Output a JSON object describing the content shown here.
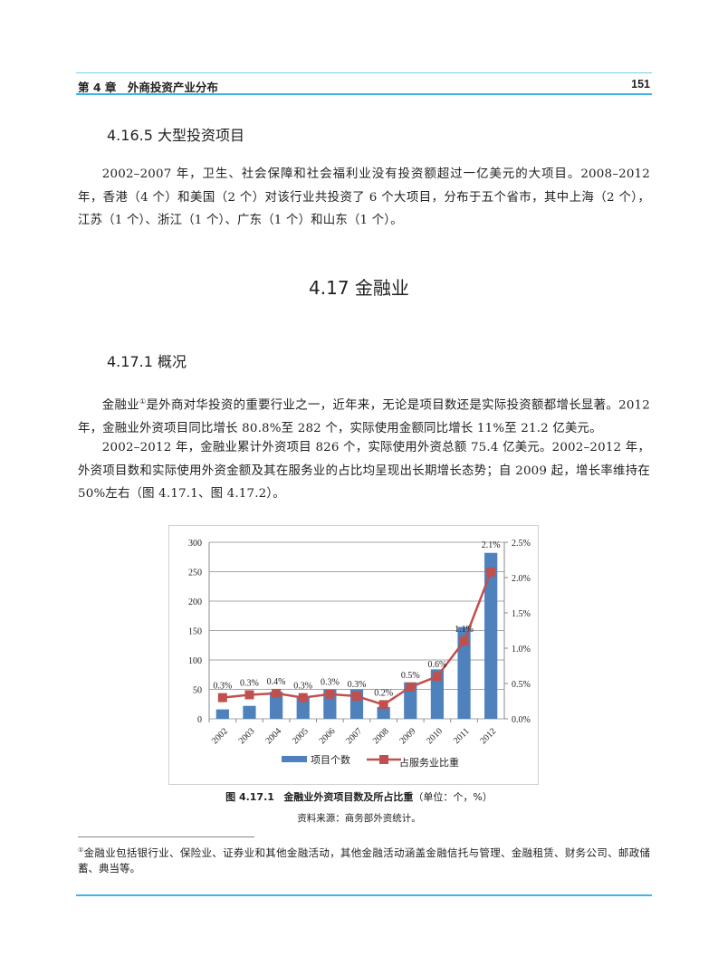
{
  "header": {
    "chapter": "第 4 章　外商投资产业分布",
    "page_number": "151"
  },
  "section_4165": {
    "heading": "4.16.5  大型投资项目",
    "paragraph": "2002–2007 年，卫生、社会保障和社会福利业没有投资额超过一亿美元的大项目。2008–2012 年，香港（4 个）和美国（2 个）对该行业共投资了 6 个大项目，分布于五个省市，其中上海（2 个），江苏（1 个）、浙江（1 个）、广东（1 个）和山东（1 个）。"
  },
  "section_417": {
    "heading": "4.17  金融业"
  },
  "section_4171": {
    "heading": "4.17.1  概况",
    "p1_lead": "金融业",
    "p1_mark": "①",
    "p1_rest": "是外商对华投资的重要行业之一，近年来，无论是项目数还是实际投资额都增长显著。2012 年，金融业外资项目同比增长 80.8%至 282 个，实际使用金额同比增长 11%至 21.2 亿美元。",
    "p2": "2002–2012 年，金融业累计外资项目 826 个，实际使用外资总额 75.4 亿美元。2002–2012 年，外资项目数和实际使用外资金额及其在服务业的占比均呈现出长期增长态势；自 2009 起，增长率维持在 50%左右（图 4.17.1、图 4.17.2）。"
  },
  "chart_data": {
    "type": "bar+line",
    "categories": [
      "2002",
      "2003",
      "2004",
      "2005",
      "2006",
      "2007",
      "2008",
      "2009",
      "2010",
      "2011",
      "2012"
    ],
    "series": [
      {
        "name": "项目个数",
        "type": "bar",
        "axis": "left",
        "color": "#4f81bd",
        "values": [
          16,
          22,
          46,
          38,
          50,
          50,
          20,
          62,
          84,
          156,
          282
        ]
      },
      {
        "name": "占服务业比重",
        "type": "line",
        "axis": "right",
        "color": "#c0504d",
        "values": [
          0.3,
          0.34,
          0.36,
          0.3,
          0.35,
          0.32,
          0.2,
          0.45,
          0.6,
          1.1,
          2.08
        ],
        "data_labels": [
          "0.3%",
          "0.3%",
          "0.4%",
          "0.3%",
          "0.3%",
          "0.3%",
          "0.2%",
          "0.5%",
          "0.6%",
          "1.1%",
          "2.1%"
        ]
      }
    ],
    "y_left": {
      "range": [
        0,
        300
      ],
      "ticks": [
        "0",
        "50",
        "100",
        "150",
        "200",
        "250",
        "300"
      ]
    },
    "y_right": {
      "range": [
        0,
        2.5
      ],
      "ticks": [
        "0.0%",
        "0.5%",
        "1.0%",
        "1.5%",
        "2.0%",
        "2.5%"
      ]
    },
    "grid": true,
    "legend_position": "bottom",
    "title": "",
    "xlabel": "",
    "ylabel": ""
  },
  "figure": {
    "caption_number": "图 4.17.1",
    "caption_title": "金融业外资项目数及所占比重",
    "caption_unit": "（单位：个，%）",
    "source": "资料来源：商务部外资统计。"
  },
  "footnote": {
    "mark": "①",
    "text": "金融业包括银行业、保险业、证券业和其他金融活动，其他金融活动涵盖金融信托与管理、金融租赁、财务公司、邮政储蓄、典当等。"
  },
  "colors": {
    "accent_rule": "#3cb4e6"
  }
}
